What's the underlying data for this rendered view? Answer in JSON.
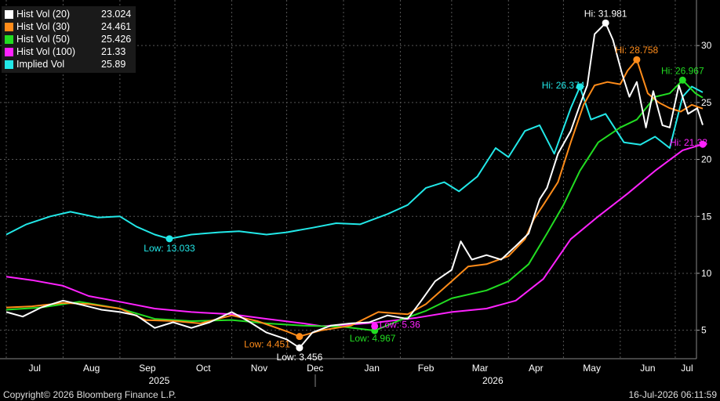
{
  "footer": {
    "copyright": "Copyright© 2026 Bloomberg Finance L.P.",
    "timestamp": "16-Jul-2026 06:11:59"
  },
  "chart_data": {
    "type": "line",
    "x_start": "2025-07-01",
    "x_end": "2026-07-16",
    "ylim": [
      2.5,
      34
    ],
    "y_ticks": [
      5,
      10,
      15,
      20,
      25,
      30
    ],
    "x_tick_labels": [
      {
        "label": "Jul",
        "date": "2025-07-01"
      },
      {
        "label": "Aug",
        "date": "2025-08-01"
      },
      {
        "label": "Sep",
        "date": "2025-09-01"
      },
      {
        "label": "Oct",
        "date": "2025-10-01"
      },
      {
        "label": "Nov",
        "date": "2025-11-01"
      },
      {
        "label": "Dec",
        "date": "2025-12-01"
      },
      {
        "label": "Jan",
        "date": "2026-01-01"
      },
      {
        "label": "Feb",
        "date": "2026-02-01"
      },
      {
        "label": "Mar",
        "date": "2026-03-01"
      },
      {
        "label": "Apr",
        "date": "2026-04-01"
      },
      {
        "label": "May",
        "date": "2026-05-01"
      },
      {
        "label": "Jun",
        "date": "2026-06-01"
      },
      {
        "label": "Jul",
        "date": "2026-07-01"
      }
    ],
    "year_labels": [
      {
        "label": "2025",
        "date": "2025-10-01"
      },
      {
        "label": "2026",
        "date": "2026-04-01"
      }
    ],
    "series": [
      {
        "name": "Hist Vol (20)",
        "value": "23.024",
        "color": "#ffffff",
        "points": [
          [
            "2025-07-01",
            6.6
          ],
          [
            "2025-07-10",
            6.2
          ],
          [
            "2025-07-20",
            7.0
          ],
          [
            "2025-08-01",
            7.6
          ],
          [
            "2025-08-12",
            7.2
          ],
          [
            "2025-08-22",
            6.8
          ],
          [
            "2025-09-01",
            6.6
          ],
          [
            "2025-09-10",
            6.3
          ],
          [
            "2025-09-20",
            5.2
          ],
          [
            "2025-09-30",
            5.7
          ],
          [
            "2025-10-10",
            5.2
          ],
          [
            "2025-10-20",
            5.7
          ],
          [
            "2025-11-01",
            6.6
          ],
          [
            "2025-11-10",
            5.8
          ],
          [
            "2025-11-20",
            4.8
          ],
          [
            "2025-12-01",
            4.2
          ],
          [
            "2025-12-08",
            3.456
          ],
          [
            "2025-12-15",
            4.8
          ],
          [
            "2025-12-25",
            5.4
          ],
          [
            "2026-01-05",
            5.6
          ],
          [
            "2026-01-15",
            5.7
          ],
          [
            "2026-01-25",
            6.3
          ],
          [
            "2026-02-05",
            6.0
          ],
          [
            "2026-02-12",
            7.5
          ],
          [
            "2026-02-20",
            9.3
          ],
          [
            "2026-03-01",
            10.3
          ],
          [
            "2026-03-06",
            12.8
          ],
          [
            "2026-03-12",
            11.2
          ],
          [
            "2026-03-20",
            11.6
          ],
          [
            "2026-03-28",
            11.2
          ],
          [
            "2026-04-05",
            12.4
          ],
          [
            "2026-04-12",
            13.5
          ],
          [
            "2026-04-18",
            16.5
          ],
          [
            "2026-04-22",
            17.5
          ],
          [
            "2026-04-28",
            20.5
          ],
          [
            "2026-05-05",
            22.5
          ],
          [
            "2026-05-10",
            24.8
          ],
          [
            "2026-05-14",
            26.5
          ],
          [
            "2026-05-18",
            31.0
          ],
          [
            "2026-05-24",
            31.981
          ],
          [
            "2026-05-28",
            30.5
          ],
          [
            "2026-06-02",
            27.5
          ],
          [
            "2026-06-06",
            25.5
          ],
          [
            "2026-06-10",
            26.8
          ],
          [
            "2026-06-15",
            22.8
          ],
          [
            "2026-06-19",
            26.0
          ],
          [
            "2026-06-24",
            23.0
          ],
          [
            "2026-06-28",
            22.8
          ],
          [
            "2026-07-03",
            26.5
          ],
          [
            "2026-07-08",
            24.0
          ],
          [
            "2026-07-13",
            24.5
          ],
          [
            "2026-07-16",
            23.024
          ]
        ]
      },
      {
        "name": "Hist Vol (30)",
        "value": "24.461",
        "color": "#ff8c1a",
        "points": [
          [
            "2025-07-01",
            7.0
          ],
          [
            "2025-07-15",
            7.1
          ],
          [
            "2025-08-01",
            7.4
          ],
          [
            "2025-08-15",
            7.3
          ],
          [
            "2025-09-01",
            6.9
          ],
          [
            "2025-09-15",
            5.9
          ],
          [
            "2025-10-01",
            5.8
          ],
          [
            "2025-10-15",
            5.6
          ],
          [
            "2025-11-01",
            6.3
          ],
          [
            "2025-11-15",
            5.8
          ],
          [
            "2025-12-01",
            4.9
          ],
          [
            "2025-12-08",
            4.451
          ],
          [
            "2025-12-20",
            5.0
          ],
          [
            "2026-01-05",
            5.4
          ],
          [
            "2026-01-20",
            6.6
          ],
          [
            "2026-02-05",
            6.4
          ],
          [
            "2026-02-15",
            7.3
          ],
          [
            "2026-03-01",
            9.3
          ],
          [
            "2026-03-10",
            10.6
          ],
          [
            "2026-03-20",
            10.8
          ],
          [
            "2026-04-01",
            11.5
          ],
          [
            "2026-04-10",
            13.0
          ],
          [
            "2026-04-15",
            14.8
          ],
          [
            "2026-04-20",
            16.0
          ],
          [
            "2026-04-28",
            18.0
          ],
          [
            "2026-05-05",
            21.5
          ],
          [
            "2026-05-12",
            24.8
          ],
          [
            "2026-05-18",
            26.5
          ],
          [
            "2026-05-25",
            26.8
          ],
          [
            "2026-06-01",
            26.6
          ],
          [
            "2026-06-05",
            27.8
          ],
          [
            "2026-06-10",
            28.758
          ],
          [
            "2026-06-16",
            25.8
          ],
          [
            "2026-06-22",
            25.0
          ],
          [
            "2026-06-28",
            24.5
          ],
          [
            "2026-07-04",
            24.2
          ],
          [
            "2026-07-10",
            24.8
          ],
          [
            "2026-07-16",
            24.461
          ]
        ]
      },
      {
        "name": "Hist Vol (50)",
        "value": "25.426",
        "color": "#22dd22",
        "points": [
          [
            "2025-07-01",
            6.8
          ],
          [
            "2025-07-20",
            7.0
          ],
          [
            "2025-08-10",
            7.5
          ],
          [
            "2025-09-01",
            6.9
          ],
          [
            "2025-09-20",
            6.0
          ],
          [
            "2025-10-10",
            5.8
          ],
          [
            "2025-11-01",
            5.9
          ],
          [
            "2025-11-20",
            5.6
          ],
          [
            "2025-12-10",
            5.4
          ],
          [
            "2026-01-01",
            5.3
          ],
          [
            "2026-01-18",
            4.967
          ],
          [
            "2026-02-01",
            5.9
          ],
          [
            "2026-02-15",
            6.7
          ],
          [
            "2026-03-01",
            7.8
          ],
          [
            "2026-03-20",
            8.5
          ],
          [
            "2026-04-01",
            9.3
          ],
          [
            "2026-04-12",
            10.8
          ],
          [
            "2026-04-22",
            13.5
          ],
          [
            "2026-05-01",
            16.0
          ],
          [
            "2026-05-10",
            19.0
          ],
          [
            "2026-05-20",
            21.5
          ],
          [
            "2026-06-01",
            22.8
          ],
          [
            "2026-06-10",
            23.5
          ],
          [
            "2026-06-20",
            25.5
          ],
          [
            "2026-06-28",
            25.8
          ],
          [
            "2026-07-05",
            26.967
          ],
          [
            "2026-07-12",
            25.8
          ],
          [
            "2026-07-16",
            25.426
          ]
        ]
      },
      {
        "name": "Hist Vol (100)",
        "value": "21.33",
        "color": "#ff22ff",
        "points": [
          [
            "2025-07-01",
            9.7
          ],
          [
            "2025-07-15",
            9.4
          ],
          [
            "2025-08-01",
            8.9
          ],
          [
            "2025-08-15",
            8.0
          ],
          [
            "2025-09-01",
            7.5
          ],
          [
            "2025-09-20",
            6.9
          ],
          [
            "2025-10-10",
            6.6
          ],
          [
            "2025-11-01",
            6.4
          ],
          [
            "2025-11-20",
            6.0
          ],
          [
            "2025-12-10",
            5.6
          ],
          [
            "2025-12-20",
            5.36
          ],
          [
            "2026-01-05",
            5.5
          ],
          [
            "2026-01-20",
            5.7
          ],
          [
            "2026-02-10",
            6.1
          ],
          [
            "2026-03-01",
            6.6
          ],
          [
            "2026-03-20",
            6.9
          ],
          [
            "2026-04-05",
            7.6
          ],
          [
            "2026-04-20",
            9.5
          ],
          [
            "2026-05-05",
            13.0
          ],
          [
            "2026-05-20",
            15.0
          ],
          [
            "2026-06-05",
            17.0
          ],
          [
            "2026-06-20",
            19.0
          ],
          [
            "2026-07-05",
            20.8
          ],
          [
            "2026-07-16",
            21.33
          ]
        ]
      },
      {
        "name": "Implied Vol",
        "value": "25.89",
        "color": "#22e8e8",
        "points": [
          [
            "2025-07-01",
            13.4
          ],
          [
            "2025-07-12",
            14.3
          ],
          [
            "2025-07-25",
            15.0
          ],
          [
            "2025-08-05",
            15.4
          ],
          [
            "2025-08-20",
            14.9
          ],
          [
            "2025-09-01",
            15.0
          ],
          [
            "2025-09-10",
            14.1
          ],
          [
            "2025-09-20",
            13.4
          ],
          [
            "2025-09-28",
            13.033
          ],
          [
            "2025-10-10",
            13.4
          ],
          [
            "2025-10-25",
            13.6
          ],
          [
            "2025-11-05",
            13.7
          ],
          [
            "2025-11-20",
            13.4
          ],
          [
            "2025-12-01",
            13.6
          ],
          [
            "2025-12-15",
            14.0
          ],
          [
            "2025-12-28",
            14.4
          ],
          [
            "2026-01-10",
            14.3
          ],
          [
            "2026-01-25",
            15.2
          ],
          [
            "2026-02-05",
            16.0
          ],
          [
            "2026-02-15",
            17.5
          ],
          [
            "2026-02-25",
            18.0
          ],
          [
            "2026-03-05",
            17.2
          ],
          [
            "2026-03-15",
            18.5
          ],
          [
            "2026-03-25",
            21.0
          ],
          [
            "2026-04-01",
            20.2
          ],
          [
            "2026-04-10",
            22.5
          ],
          [
            "2026-04-18",
            23.0
          ],
          [
            "2026-04-26",
            20.5
          ],
          [
            "2026-05-05",
            24.5
          ],
          [
            "2026-05-10",
            26.374
          ],
          [
            "2026-05-16",
            23.5
          ],
          [
            "2026-05-24",
            24.0
          ],
          [
            "2026-06-03",
            21.5
          ],
          [
            "2026-06-12",
            21.3
          ],
          [
            "2026-06-20",
            22.0
          ],
          [
            "2026-06-28",
            21.0
          ],
          [
            "2026-07-05",
            25.5
          ],
          [
            "2026-07-10",
            26.4
          ],
          [
            "2026-07-16",
            25.89
          ]
        ]
      }
    ],
    "annotations": [
      {
        "text": "Hi: 31.981",
        "series": 0,
        "date": "2026-05-24",
        "value": 31.981,
        "color": "#ffffff",
        "pos": "above"
      },
      {
        "text": "Low: 3.456",
        "series": 0,
        "date": "2025-12-08",
        "value": 3.456,
        "color": "#ffffff",
        "pos": "below"
      },
      {
        "text": "Hi: 28.758",
        "series": 1,
        "date": "2026-06-10",
        "value": 28.758,
        "color": "#ff8c1a",
        "pos": "above"
      },
      {
        "text": "Low: 4.451",
        "series": 1,
        "date": "2025-12-08",
        "value": 4.451,
        "color": "#ff8c1a",
        "pos": "left"
      },
      {
        "text": "Hi: 26.967",
        "series": 2,
        "date": "2026-07-05",
        "value": 26.967,
        "color": "#22dd22",
        "pos": "above"
      },
      {
        "text": "Low: 4.967",
        "series": 2,
        "date": "2026-01-18",
        "value": 4.967,
        "color": "#22dd22",
        "pos": "belowleft"
      },
      {
        "text": "Hi: 21.33",
        "series": 3,
        "date": "2026-07-16",
        "value": 21.33,
        "color": "#ff22ff",
        "pos": "aboveleft"
      },
      {
        "text": "Low: 5.36",
        "series": 3,
        "date": "2026-01-18",
        "value": 5.36,
        "color": "#ff22ff",
        "pos": "upleft"
      },
      {
        "text": "Hi: 26.374",
        "series": 4,
        "date": "2026-05-10",
        "value": 26.374,
        "color": "#22e8e8",
        "pos": "aboveleft"
      },
      {
        "text": "Low: 13.033",
        "series": 4,
        "date": "2025-09-28",
        "value": 13.033,
        "color": "#22e8e8",
        "pos": "below"
      }
    ]
  }
}
